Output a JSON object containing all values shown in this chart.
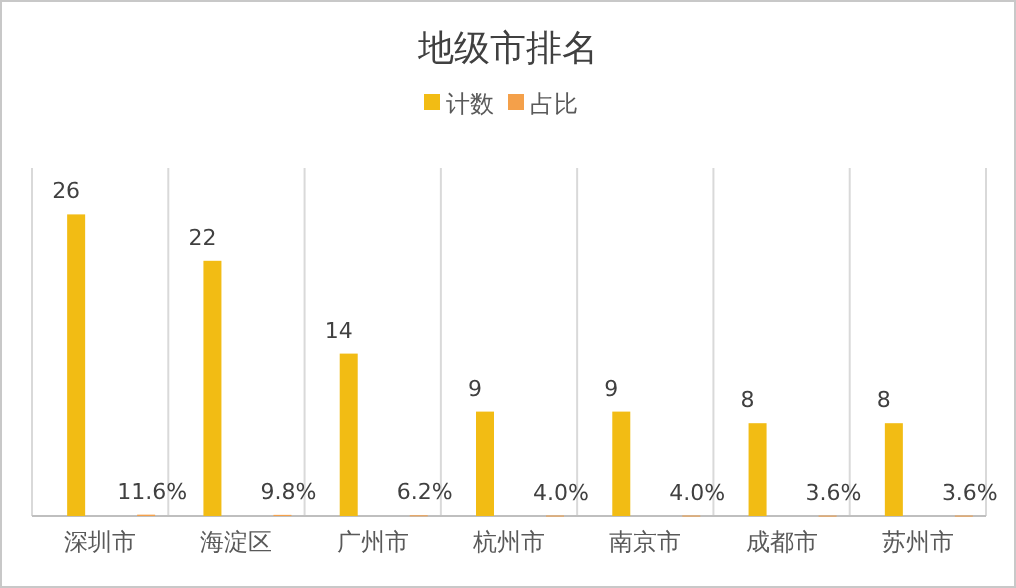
{
  "chart_data": {
    "type": "bar",
    "title": "地级市排名",
    "categories": [
      "深圳市",
      "海淀区",
      "广州市",
      "杭州市",
      "南京市",
      "成都市",
      "苏州市"
    ],
    "series": [
      {
        "name": "计数",
        "color": "#f2bc14",
        "values": [
          26,
          22,
          14,
          9,
          9,
          8,
          8
        ],
        "value_labels": [
          "26",
          "22",
          "14",
          "9",
          "9",
          "8",
          "8"
        ]
      },
      {
        "name": "占比",
        "color": "#f4a04a",
        "values": [
          0.116,
          0.098,
          0.062,
          0.04,
          0.04,
          0.036,
          0.036
        ],
        "value_labels": [
          "11.6%",
          "9.8%",
          "6.2%",
          "4.0%",
          "4.0%",
          "3.6%",
          "3.6%"
        ]
      }
    ],
    "ylim": [
      0,
      30
    ],
    "grid": "x",
    "legend": "top"
  }
}
